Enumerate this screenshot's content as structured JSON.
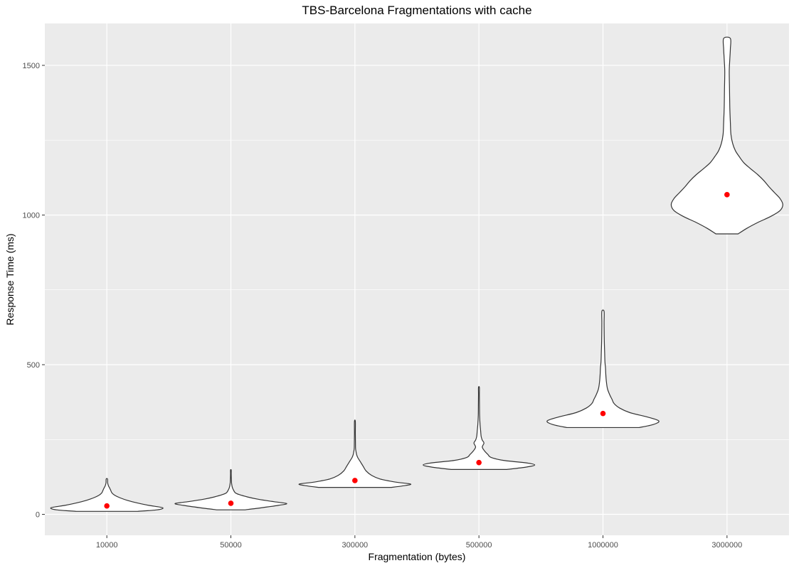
{
  "chart_data": {
    "type": "violin",
    "title": "TBS-Barcelona Fragmentations with cache",
    "xlabel": "Fragmentation (bytes)",
    "ylabel": "Response Time (ms)",
    "categories": [
      "10000",
      "50000",
      "300000",
      "500000",
      "1000000",
      "3000000"
    ],
    "y_ticks": [
      0,
      500,
      1000,
      1500
    ],
    "ylim": [
      -70,
      1640
    ],
    "grid": true,
    "panel_background": "#ebebeb",
    "mean_color": "#ff0000",
    "series": [
      {
        "category": "10000",
        "min": 10,
        "max": 118,
        "mean": 28,
        "density": [
          [
            10,
            0.55
          ],
          [
            15,
            0.9
          ],
          [
            22,
            1.0
          ],
          [
            30,
            0.75
          ],
          [
            38,
            0.55
          ],
          [
            46,
            0.38
          ],
          [
            55,
            0.24
          ],
          [
            64,
            0.14
          ],
          [
            72,
            0.09
          ],
          [
            80,
            0.07
          ],
          [
            88,
            0.05
          ],
          [
            95,
            0.03
          ],
          [
            105,
            0.015
          ],
          [
            118,
            0.012
          ]
        ]
      },
      {
        "category": "50000",
        "min": 15,
        "max": 148,
        "mean": 37,
        "density": [
          [
            15,
            0.25
          ],
          [
            22,
            0.55
          ],
          [
            30,
            0.85
          ],
          [
            36,
            1.0
          ],
          [
            42,
            0.78
          ],
          [
            50,
            0.5
          ],
          [
            58,
            0.3
          ],
          [
            66,
            0.15
          ],
          [
            72,
            0.08
          ],
          [
            80,
            0.05
          ],
          [
            88,
            0.03
          ],
          [
            95,
            0.02
          ],
          [
            105,
            0.012
          ],
          [
            120,
            0.008
          ],
          [
            135,
            0.006
          ],
          [
            148,
            0.006
          ]
        ]
      },
      {
        "category": "300000",
        "min": 90,
        "max": 310,
        "mean": 113,
        "density": [
          [
            90,
            0.65
          ],
          [
            95,
            0.85
          ],
          [
            101,
            1.0
          ],
          [
            108,
            0.72
          ],
          [
            118,
            0.45
          ],
          [
            130,
            0.3
          ],
          [
            145,
            0.2
          ],
          [
            160,
            0.15
          ],
          [
            175,
            0.1
          ],
          [
            190,
            0.05
          ],
          [
            200,
            0.03
          ],
          [
            210,
            0.02
          ],
          [
            220,
            0.012
          ],
          [
            240,
            0.01
          ],
          [
            270,
            0.008
          ],
          [
            310,
            0.008
          ]
        ]
      },
      {
        "category": "500000",
        "min": 150,
        "max": 424,
        "mean": 173,
        "density": [
          [
            150,
            0.5
          ],
          [
            158,
            0.85
          ],
          [
            165,
            1.0
          ],
          [
            172,
            0.85
          ],
          [
            180,
            0.45
          ],
          [
            190,
            0.22
          ],
          [
            200,
            0.16
          ],
          [
            212,
            0.1
          ],
          [
            225,
            0.06
          ],
          [
            238,
            0.09
          ],
          [
            248,
            0.06
          ],
          [
            260,
            0.04
          ],
          [
            280,
            0.03
          ],
          [
            300,
            0.02
          ],
          [
            330,
            0.012
          ],
          [
            360,
            0.01
          ],
          [
            400,
            0.008
          ],
          [
            424,
            0.008
          ]
        ]
      },
      {
        "category": "1000000",
        "min": 290,
        "max": 678,
        "mean": 337,
        "density": [
          [
            290,
            0.65
          ],
          [
            300,
            0.9
          ],
          [
            312,
            1.0
          ],
          [
            325,
            0.8
          ],
          [
            340,
            0.48
          ],
          [
            355,
            0.3
          ],
          [
            370,
            0.2
          ],
          [
            385,
            0.16
          ],
          [
            400,
            0.12
          ],
          [
            420,
            0.08
          ],
          [
            445,
            0.06
          ],
          [
            470,
            0.05
          ],
          [
            490,
            0.045
          ],
          [
            510,
            0.035
          ],
          [
            540,
            0.03
          ],
          [
            570,
            0.025
          ],
          [
            600,
            0.022
          ],
          [
            640,
            0.02
          ],
          [
            678,
            0.02
          ]
        ]
      },
      {
        "category": "3000000",
        "min": 937,
        "max": 1590,
        "mean": 1068,
        "density": [
          [
            937,
            0.2
          ],
          [
            955,
            0.35
          ],
          [
            975,
            0.55
          ],
          [
            995,
            0.78
          ],
          [
            1015,
            0.95
          ],
          [
            1035,
            1.0
          ],
          [
            1055,
            0.95
          ],
          [
            1075,
            0.85
          ],
          [
            1095,
            0.75
          ],
          [
            1115,
            0.66
          ],
          [
            1135,
            0.55
          ],
          [
            1155,
            0.42
          ],
          [
            1175,
            0.3
          ],
          [
            1195,
            0.22
          ],
          [
            1215,
            0.15
          ],
          [
            1240,
            0.1
          ],
          [
            1270,
            0.07
          ],
          [
            1310,
            0.06
          ],
          [
            1360,
            0.05
          ],
          [
            1420,
            0.045
          ],
          [
            1480,
            0.04
          ],
          [
            1520,
            0.05
          ],
          [
            1555,
            0.06
          ],
          [
            1590,
            0.06
          ]
        ]
      }
    ]
  }
}
